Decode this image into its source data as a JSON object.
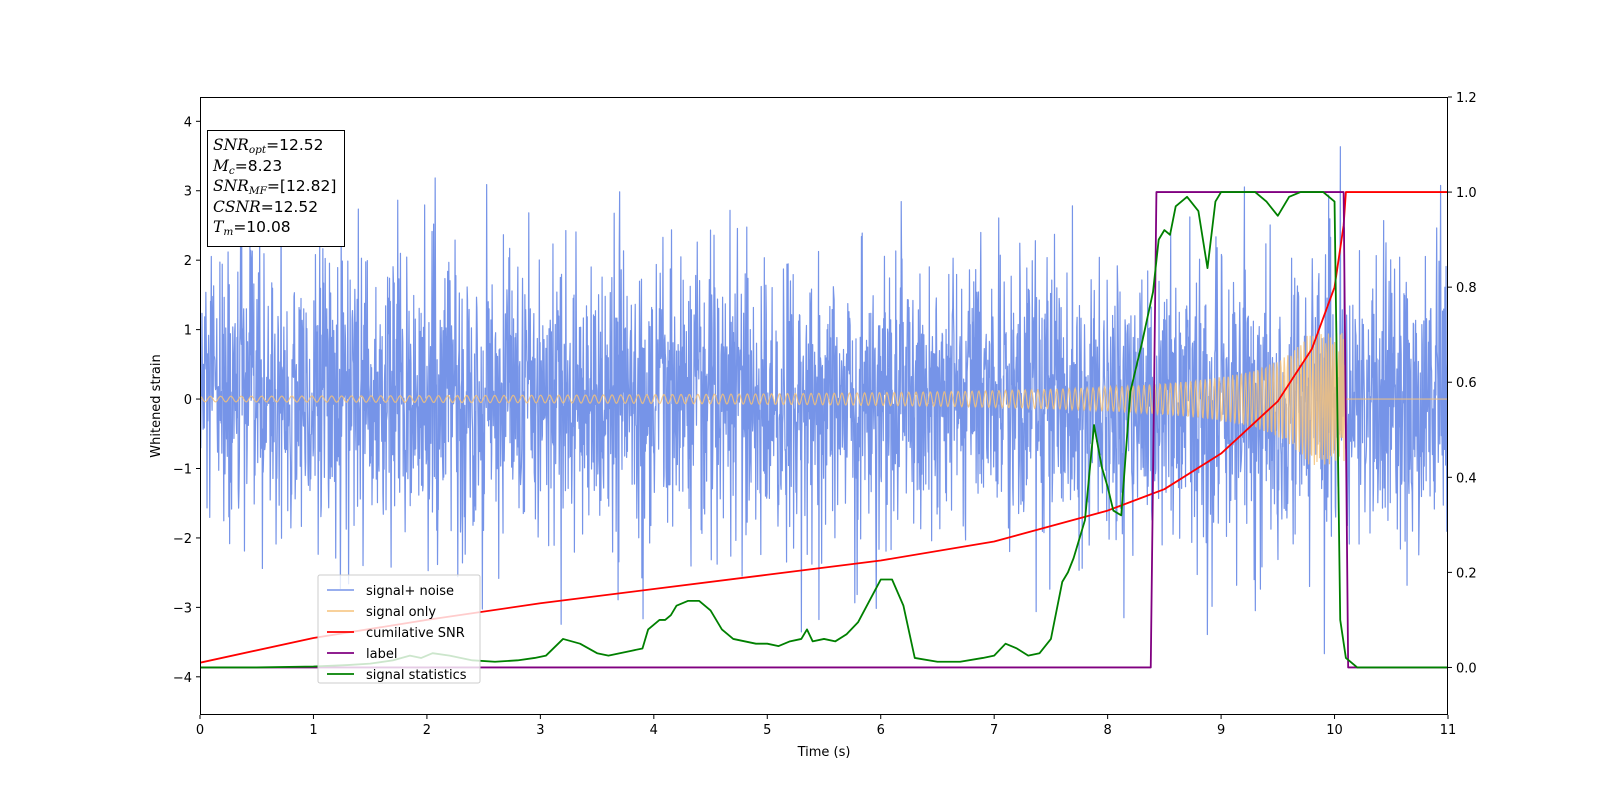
{
  "chart_data": {
    "type": "line",
    "xlabel": "Time (s)",
    "ylabel": "Whitened strain",
    "xlim": [
      0,
      11
    ],
    "ylim_left": [
      -4.55,
      4.35
    ],
    "ylim_right": [
      -0.1,
      1.2
    ],
    "x_ticks": [
      0,
      1,
      2,
      3,
      4,
      5,
      6,
      7,
      8,
      9,
      10,
      11
    ],
    "y_ticks_left": [
      -4,
      -3,
      -2,
      -1,
      0,
      1,
      2,
      3,
      4
    ],
    "y_ticks_right": [
      0.0,
      0.2,
      0.4,
      0.6,
      0.8,
      1.0,
      1.2
    ],
    "legend_position": "lower-left",
    "grid": false,
    "annotation": {
      "snr_opt": {
        "symbol": "SNR",
        "sub": "opt",
        "value": "=12.52"
      },
      "mc": {
        "symbol": "M",
        "sub": "c",
        "value": "=8.23"
      },
      "snr_mf": {
        "symbol": "SNR",
        "sub": "MF",
        "value": "=[12.82]"
      },
      "csnr": {
        "symbol": "CSNR",
        "sub": "",
        "value": "=12.52"
      },
      "tm": {
        "symbol": "T",
        "sub": "m",
        "value": "=10.08"
      }
    },
    "series": [
      {
        "name": "signal+ noise",
        "axis": "left",
        "color": "#7694e8",
        "description_kind": "noise",
        "sigma": 1.05,
        "clip": [
          -4.2,
          3.95
        ]
      },
      {
        "name": "signal only",
        "axis": "left",
        "color": "#f5c27a",
        "description_kind": "chirp",
        "merger_time": 10.08,
        "end_time": 10.1,
        "amplitude_start": 0.04,
        "amplitude_peak": 0.95
      },
      {
        "name": "cumilative SNR",
        "axis": "right",
        "color": "#ff0000",
        "x": [
          0,
          1,
          2,
          3,
          4,
          5,
          6,
          7,
          8,
          8.5,
          9,
          9.5,
          9.8,
          10.0,
          10.08,
          10.1,
          11
        ],
        "y": [
          0.01,
          0.062,
          0.1,
          0.135,
          0.165,
          0.195,
          0.225,
          0.265,
          0.33,
          0.375,
          0.45,
          0.56,
          0.67,
          0.8,
          0.93,
          1.0,
          1.0
        ]
      },
      {
        "name": "label",
        "axis": "right",
        "color": "#800080",
        "x": [
          0,
          8.38,
          8.43,
          10.08,
          10.12,
          11
        ],
        "y": [
          0,
          0,
          1.0,
          1.0,
          0,
          0
        ]
      },
      {
        "name": "signal statistics",
        "axis": "right",
        "color": "#008000",
        "x": [
          0,
          0.5,
          1.0,
          1.3,
          1.5,
          1.7,
          1.85,
          1.95,
          2.05,
          2.2,
          2.4,
          2.6,
          2.8,
          2.95,
          3.05,
          3.2,
          3.35,
          3.5,
          3.6,
          3.7,
          3.8,
          3.9,
          3.95,
          4.0,
          4.05,
          4.1,
          4.15,
          4.2,
          4.3,
          4.4,
          4.5,
          4.6,
          4.7,
          4.9,
          5.0,
          5.1,
          5.2,
          5.3,
          5.35,
          5.4,
          5.5,
          5.6,
          5.7,
          5.8,
          5.9,
          6.0,
          6.1,
          6.2,
          6.3,
          6.5,
          6.7,
          6.9,
          7.0,
          7.1,
          7.2,
          7.3,
          7.4,
          7.5,
          7.6,
          7.65,
          7.7,
          7.8,
          7.88,
          7.95,
          8.0,
          8.05,
          8.12,
          8.2,
          8.3,
          8.4,
          8.45,
          8.5,
          8.55,
          8.6,
          8.7,
          8.8,
          8.88,
          8.95,
          9.0,
          9.2,
          9.3,
          9.4,
          9.5,
          9.6,
          9.7,
          9.8,
          9.9,
          10.0,
          10.05,
          10.1,
          10.2,
          10.5,
          11
        ],
        "y": [
          0.0,
          0.0,
          0.002,
          0.005,
          0.008,
          0.015,
          0.025,
          0.02,
          0.03,
          0.025,
          0.015,
          0.012,
          0.015,
          0.02,
          0.025,
          0.06,
          0.05,
          0.03,
          0.025,
          0.03,
          0.035,
          0.04,
          0.08,
          0.09,
          0.1,
          0.1,
          0.11,
          0.13,
          0.14,
          0.14,
          0.12,
          0.08,
          0.06,
          0.05,
          0.05,
          0.045,
          0.055,
          0.06,
          0.08,
          0.055,
          0.06,
          0.055,
          0.07,
          0.095,
          0.14,
          0.185,
          0.185,
          0.13,
          0.02,
          0.012,
          0.012,
          0.02,
          0.025,
          0.05,
          0.04,
          0.025,
          0.03,
          0.06,
          0.18,
          0.2,
          0.23,
          0.31,
          0.51,
          0.42,
          0.38,
          0.33,
          0.32,
          0.58,
          0.68,
          0.79,
          0.9,
          0.92,
          0.91,
          0.97,
          0.99,
          0.96,
          0.84,
          0.98,
          1.0,
          1.0,
          1.0,
          0.98,
          0.95,
          0.99,
          1.0,
          1.0,
          1.0,
          0.98,
          0.1,
          0.02,
          0.0,
          0.0,
          0.0
        ]
      }
    ]
  }
}
